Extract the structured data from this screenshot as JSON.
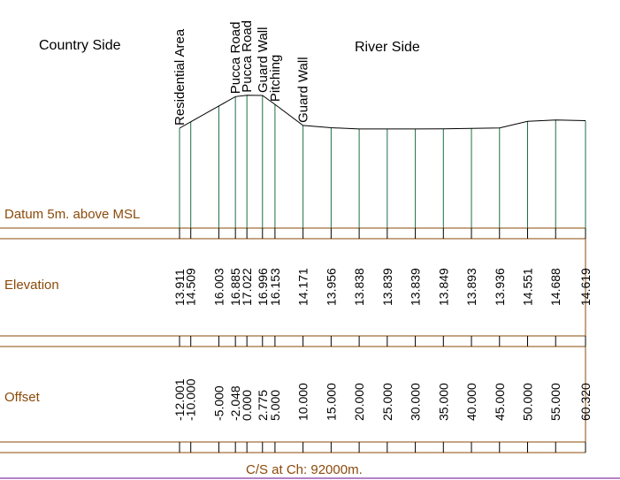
{
  "headings": {
    "country_side": "Country Side",
    "river_side": "River Side"
  },
  "row_labels": {
    "datum": "Datum 5m. above MSL",
    "elevation": "Elevation",
    "offset": "Offset"
  },
  "caption": "C/S at Ch: 92000m.",
  "colors": {
    "frame": "#8b4a0a",
    "ground_line": "#000000",
    "verticals": "#1e6e45",
    "caption_rule": "#9b59b6"
  },
  "profile": {
    "datum_elevation": 5,
    "points": [
      {
        "offset": "-12.001",
        "elevation": "13.911",
        "feature": "Residential Area"
      },
      {
        "offset": "-10.000",
        "elevation": "14.509",
        "feature": ""
      },
      {
        "offset": "-5.000",
        "elevation": "16.003",
        "feature": ""
      },
      {
        "offset": "-2.048",
        "elevation": "16.885",
        "feature": "Pucca Road"
      },
      {
        "offset": "0.000",
        "elevation": "17.022",
        "feature": "Pucca Road"
      },
      {
        "offset": "2.775",
        "elevation": "16.996",
        "feature": "Guard Wall"
      },
      {
        "offset": "5.000",
        "elevation": "16.153",
        "feature": "Pitching"
      },
      {
        "offset": "10.000",
        "elevation": "14.171",
        "feature": "Guard Wall"
      },
      {
        "offset": "15.000",
        "elevation": "13.956",
        "feature": ""
      },
      {
        "offset": "20.000",
        "elevation": "13.838",
        "feature": ""
      },
      {
        "offset": "25.000",
        "elevation": "13.839",
        "feature": ""
      },
      {
        "offset": "30.000",
        "elevation": "13.839",
        "feature": ""
      },
      {
        "offset": "35.000",
        "elevation": "13.849",
        "feature": ""
      },
      {
        "offset": "40.000",
        "elevation": "13.893",
        "feature": ""
      },
      {
        "offset": "45.000",
        "elevation": "13.936",
        "feature": ""
      },
      {
        "offset": "50.000",
        "elevation": "14.551",
        "feature": ""
      },
      {
        "offset": "55.000",
        "elevation": "14.688",
        "feature": ""
      },
      {
        "offset": "60.320",
        "elevation": "14.619",
        "feature": ""
      }
    ]
  }
}
